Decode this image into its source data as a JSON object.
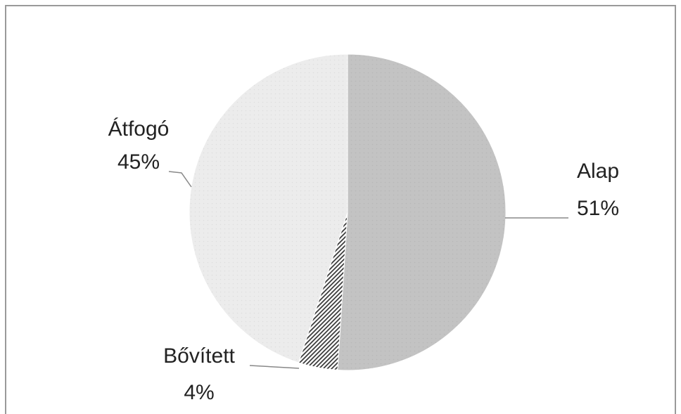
{
  "chart_data": {
    "type": "pie",
    "categories": [
      "Alap",
      "Bővített",
      "Átfogó"
    ],
    "values": [
      51,
      4,
      45
    ],
    "value_labels": [
      "51%",
      "4%",
      "45%"
    ],
    "colors": [
      "#c3c3c3",
      "#3c3c3c",
      "#ececec"
    ]
  }
}
